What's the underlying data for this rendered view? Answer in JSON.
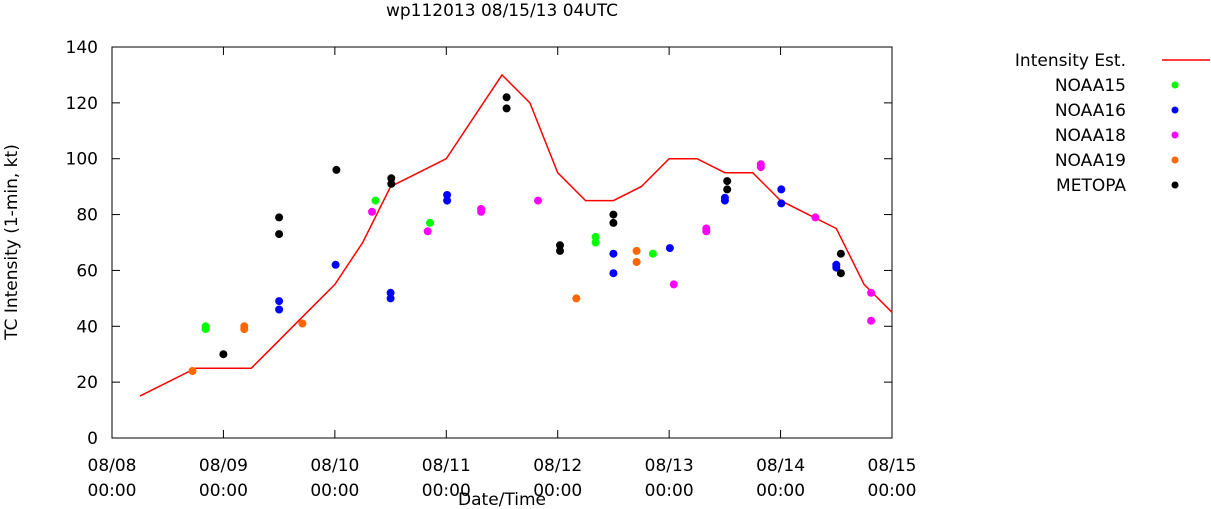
{
  "chart_data": {
    "type": "scatter",
    "title": "wp112013 08/15/13 04UTC",
    "xlabel": "Date/Time",
    "ylabel": "TC Intensity (1-min, kt)",
    "xlim": [
      "2013-08-08 00:00",
      "2013-08-15 00:00"
    ],
    "ylim": [
      0,
      140
    ],
    "yticks": [
      0,
      20,
      40,
      60,
      80,
      100,
      120,
      140
    ],
    "yticklabels": [
      "0",
      "20",
      "40",
      "60",
      "80",
      "100",
      "120",
      "140"
    ],
    "xticks": [
      {
        "x": "2013-08-08 00:00",
        "line1": "08/08",
        "line2": "00:00"
      },
      {
        "x": "2013-08-09 00:00",
        "line1": "08/09",
        "line2": "00:00"
      },
      {
        "x": "2013-08-10 00:00",
        "line1": "08/10",
        "line2": "00:00"
      },
      {
        "x": "2013-08-11 00:00",
        "line1": "08/11",
        "line2": "00:00"
      },
      {
        "x": "2013-08-12 00:00",
        "line1": "08/12",
        "line2": "00:00"
      },
      {
        "x": "2013-08-13 00:00",
        "line1": "08/13",
        "line2": "00:00"
      },
      {
        "x": "2013-08-14 00:00",
        "line1": "08/14",
        "line2": "00:00"
      },
      {
        "x": "2013-08-15 00:00",
        "line1": "08/15",
        "line2": "00:00"
      }
    ],
    "grid": false,
    "legend_position": "outside-right",
    "series": [
      {
        "name": "Intensity Est.",
        "kind": "line",
        "color": "#ff0000",
        "points": [
          [
            "2013-08-08 06:00",
            15
          ],
          [
            "2013-08-08 18:00",
            25
          ],
          [
            "2013-08-09 00:00",
            25
          ],
          [
            "2013-08-09 06:00",
            25
          ],
          [
            "2013-08-09 12:00",
            35
          ],
          [
            "2013-08-09 18:00",
            45
          ],
          [
            "2013-08-10 00:00",
            55
          ],
          [
            "2013-08-10 06:00",
            70
          ],
          [
            "2013-08-10 12:00",
            90
          ],
          [
            "2013-08-10 18:00",
            95
          ],
          [
            "2013-08-11 00:00",
            100
          ],
          [
            "2013-08-11 06:00",
            115
          ],
          [
            "2013-08-11 12:00",
            130
          ],
          [
            "2013-08-11 18:00",
            120
          ],
          [
            "2013-08-12 00:00",
            95
          ],
          [
            "2013-08-12 06:00",
            85
          ],
          [
            "2013-08-12 12:00",
            85
          ],
          [
            "2013-08-12 18:00",
            90
          ],
          [
            "2013-08-13 00:00",
            100
          ],
          [
            "2013-08-13 06:00",
            100
          ],
          [
            "2013-08-13 12:00",
            95
          ],
          [
            "2013-08-13 18:00",
            95
          ],
          [
            "2013-08-14 00:00",
            85
          ],
          [
            "2013-08-14 06:00",
            80
          ],
          [
            "2013-08-14 12:00",
            75
          ],
          [
            "2013-08-14 18:00",
            55
          ],
          [
            "2013-08-15 00:00",
            45
          ]
        ]
      },
      {
        "name": "NOAA15",
        "kind": "points",
        "color": "#00ff00",
        "points": [
          [
            "2013-08-08 20:10",
            40
          ],
          [
            "2013-08-08 20:10",
            39
          ],
          [
            "2013-08-10 08:45",
            85
          ],
          [
            "2013-08-10 20:30",
            77
          ],
          [
            "2013-08-12 08:10",
            72
          ],
          [
            "2013-08-12 08:10",
            70
          ],
          [
            "2013-08-12 20:30",
            66
          ]
        ]
      },
      {
        "name": "NOAA16",
        "kind": "points",
        "color": "#0000ff",
        "points": [
          [
            "2013-08-09 12:00",
            49
          ],
          [
            "2013-08-09 12:00",
            46
          ],
          [
            "2013-08-10 00:10",
            62
          ],
          [
            "2013-08-10 12:00",
            52
          ],
          [
            "2013-08-10 12:00",
            50
          ],
          [
            "2013-08-11 00:10",
            87
          ],
          [
            "2013-08-11 00:10",
            85
          ],
          [
            "2013-08-12 12:00",
            66
          ],
          [
            "2013-08-12 12:00",
            59
          ],
          [
            "2013-08-13 00:10",
            68
          ],
          [
            "2013-08-13 12:00",
            86
          ],
          [
            "2013-08-13 12:00",
            85
          ],
          [
            "2013-08-14 00:10",
            89
          ],
          [
            "2013-08-14 00:10",
            84
          ],
          [
            "2013-08-14 12:00",
            62
          ],
          [
            "2013-08-14 12:00",
            61
          ]
        ]
      },
      {
        "name": "NOAA18",
        "kind": "points",
        "color": "#ff00ff",
        "points": [
          [
            "2013-08-10 08:00",
            81
          ],
          [
            "2013-08-10 20:00",
            74
          ],
          [
            "2013-08-11 07:30",
            82
          ],
          [
            "2013-08-11 07:30",
            81
          ],
          [
            "2013-08-11 19:45",
            85
          ],
          [
            "2013-08-13 01:00",
            55
          ],
          [
            "2013-08-13 08:00",
            75
          ],
          [
            "2013-08-13 08:00",
            74
          ],
          [
            "2013-08-13 19:45",
            98
          ],
          [
            "2013-08-13 19:45",
            97
          ],
          [
            "2013-08-14 07:30",
            79
          ],
          [
            "2013-08-14 19:30",
            52
          ],
          [
            "2013-08-14 19:30",
            42
          ]
        ]
      },
      {
        "name": "NOAA19",
        "kind": "points",
        "color": "#ff6600",
        "points": [
          [
            "2013-08-08 17:20",
            24
          ],
          [
            "2013-08-09 04:30",
            40
          ],
          [
            "2013-08-09 04:30",
            39
          ],
          [
            "2013-08-09 17:00",
            41
          ],
          [
            "2013-08-12 04:00",
            50
          ],
          [
            "2013-08-12 17:00",
            67
          ],
          [
            "2013-08-12 17:00",
            63
          ]
        ]
      },
      {
        "name": "METOPA",
        "kind": "points",
        "color": "#000000",
        "points": [
          [
            "2013-08-09 00:00",
            30
          ],
          [
            "2013-08-09 12:00",
            79
          ],
          [
            "2013-08-09 12:00",
            73
          ],
          [
            "2013-08-10 00:20",
            96
          ],
          [
            "2013-08-10 12:10",
            93
          ],
          [
            "2013-08-10 12:10",
            91
          ],
          [
            "2013-08-11 13:00",
            122
          ],
          [
            "2013-08-11 13:00",
            118
          ],
          [
            "2013-08-12 00:30",
            69
          ],
          [
            "2013-08-12 00:30",
            67
          ],
          [
            "2013-08-12 12:00",
            80
          ],
          [
            "2013-08-12 12:00",
            77
          ],
          [
            "2013-08-13 12:30",
            92
          ],
          [
            "2013-08-13 12:30",
            89
          ],
          [
            "2013-08-14 13:00",
            66
          ],
          [
            "2013-08-14 13:00",
            59
          ]
        ]
      }
    ]
  }
}
